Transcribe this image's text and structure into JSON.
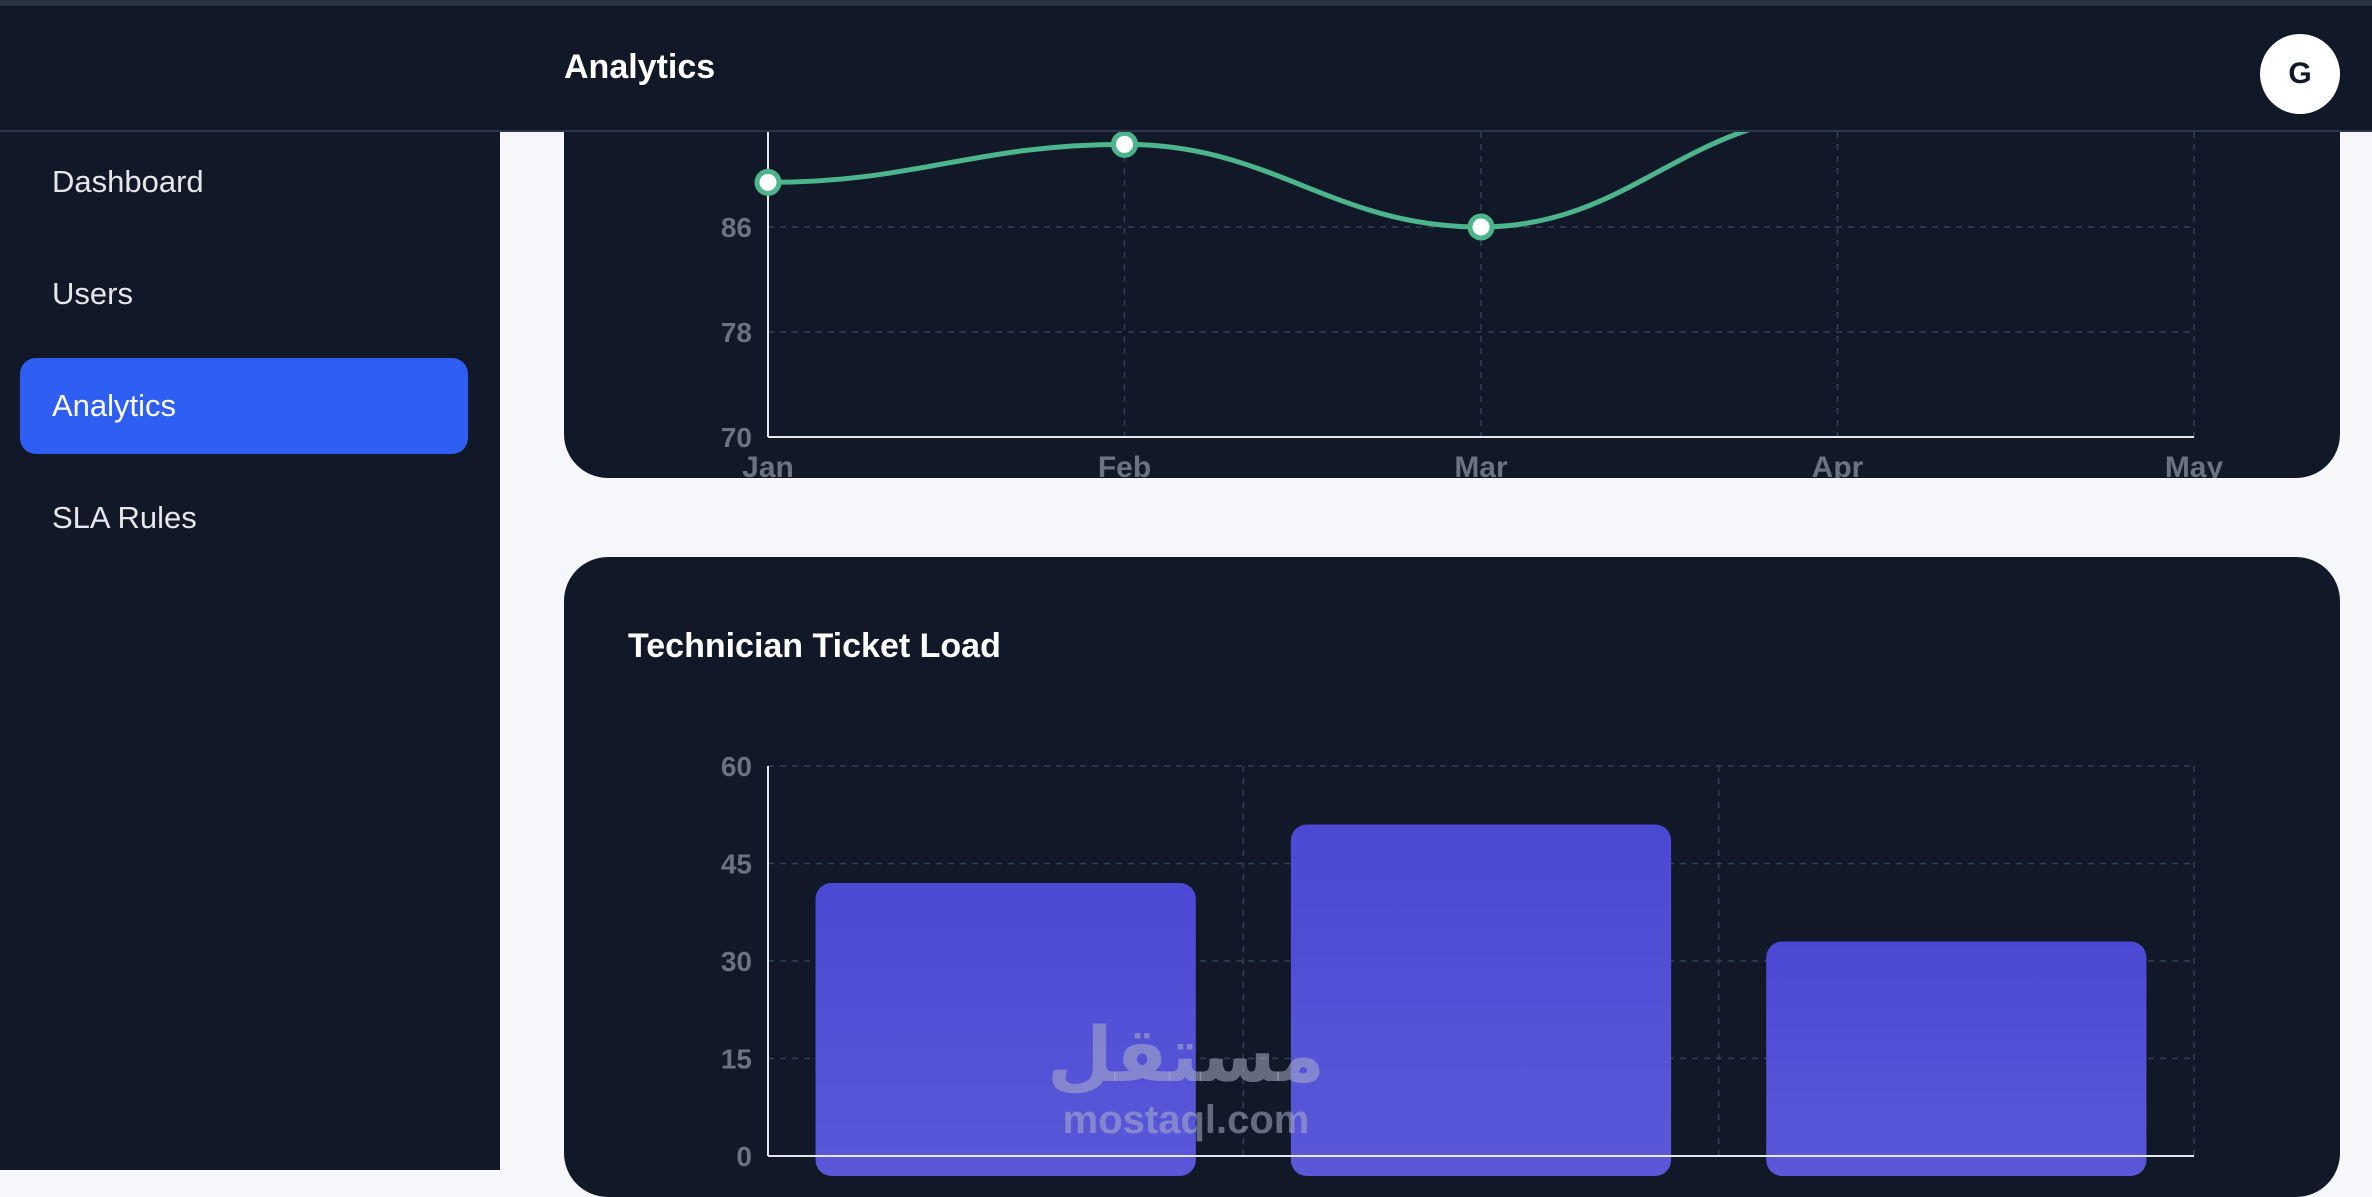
{
  "header": {
    "title": "Analytics",
    "avatar_initial": "G"
  },
  "sidebar": {
    "items": [
      {
        "label": "Dashboard",
        "active": false
      },
      {
        "label": "Users",
        "active": false
      },
      {
        "label": "Analytics",
        "active": true
      },
      {
        "label": "SLA Rules",
        "active": false
      }
    ]
  },
  "colors": {
    "accent": "#2f5ef2",
    "line": "#4cb58c",
    "bar": "#4b49d4",
    "panel": "#111827",
    "background": "#f5f7fa"
  },
  "chart_data": [
    {
      "type": "line",
      "x": [
        "Jan",
        "Feb",
        "Mar",
        "Apr",
        "May"
      ],
      "series": [
        {
          "values": [
            89.4,
            92.3,
            86,
            94.5,
            97
          ]
        }
      ],
      "ylim": [
        70,
        94
      ],
      "yticks": [
        "70",
        "78",
        "86"
      ],
      "grid": true
    },
    {
      "type": "bar",
      "title": "Technician Ticket Load",
      "categories": [
        "",
        "",
        ""
      ],
      "series": [
        {
          "values": [
            42,
            51,
            33
          ]
        }
      ],
      "ylim": [
        0,
        60
      ],
      "yticks": [
        "0",
        "15",
        "30",
        "45",
        "60"
      ],
      "grid": true
    }
  ],
  "watermark": {
    "arabic": "مستقل",
    "latin": "mostaql.com"
  }
}
